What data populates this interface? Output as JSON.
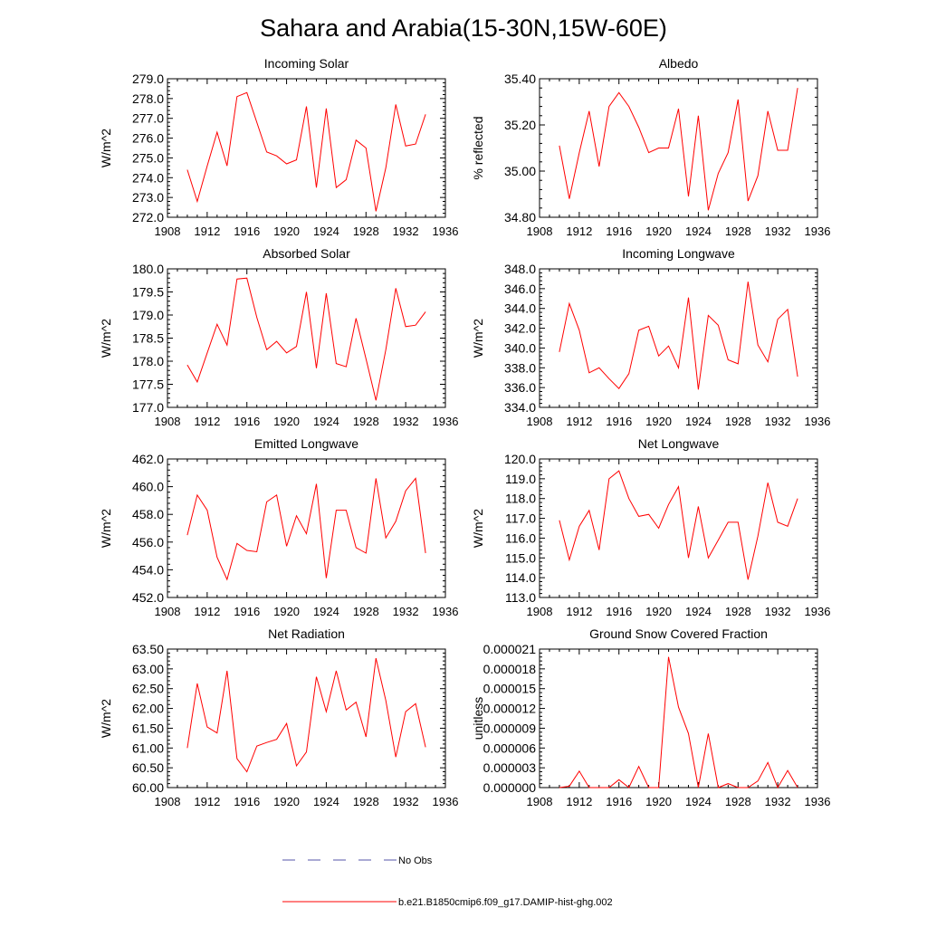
{
  "title": "Sahara and Arabia(15-30N,15W-60E)",
  "colors": {
    "series": "#ff0000",
    "no_obs": "#5555aa",
    "axis": "#000000"
  },
  "legend": {
    "position": "bottom-center",
    "entries": [
      {
        "label": "No Obs",
        "color": "#5555aa",
        "style": "dashed"
      },
      {
        "label": "b.e21.B1850cmip6.f09_g17.DAMIP-hist-ghg.002",
        "color": "#ff0000",
        "style": "solid"
      }
    ]
  },
  "chart_data": [
    {
      "type": "line",
      "title": "Incoming Solar",
      "ylabel": "W/m^2",
      "xlim": [
        1908,
        1936
      ],
      "ylim": [
        272.0,
        279.0
      ],
      "xticks": [
        "1908",
        "1912",
        "1916",
        "1920",
        "1924",
        "1928",
        "1932",
        "1936"
      ],
      "yticks": [
        "272.0",
        "273.0",
        "274.0",
        "275.0",
        "276.0",
        "277.0",
        "278.0",
        "279.0"
      ],
      "x": [
        1910,
        1911,
        1912,
        1913,
        1914,
        1915,
        1916,
        1917,
        1918,
        1919,
        1920,
        1921,
        1922,
        1923,
        1924,
        1925,
        1926,
        1927,
        1928,
        1929,
        1930,
        1931,
        1932,
        1933,
        1934
      ],
      "series": [
        {
          "values": [
            274.4,
            272.8,
            274.6,
            276.3,
            274.6,
            278.1,
            278.3,
            276.8,
            275.3,
            275.1,
            274.7,
            274.9,
            277.6,
            273.5,
            277.5,
            273.5,
            273.9,
            275.9,
            275.5,
            272.3,
            274.5,
            277.7,
            275.6,
            275.7,
            277.2
          ]
        }
      ]
    },
    {
      "type": "line",
      "title": "Albedo",
      "ylabel": "% reflected",
      "xlim": [
        1908,
        1936
      ],
      "ylim": [
        34.8,
        35.4
      ],
      "xticks": [
        "1908",
        "1912",
        "1916",
        "1920",
        "1924",
        "1928",
        "1932",
        "1936"
      ],
      "yticks": [
        "34.80",
        "35.00",
        "35.20",
        "35.40"
      ],
      "x": [
        1910,
        1911,
        1912,
        1913,
        1914,
        1915,
        1916,
        1917,
        1918,
        1919,
        1920,
        1921,
        1922,
        1923,
        1924,
        1925,
        1926,
        1927,
        1928,
        1929,
        1930,
        1931,
        1932,
        1933,
        1934
      ],
      "series": [
        {
          "values": [
            35.11,
            34.88,
            35.08,
            35.26,
            35.02,
            35.28,
            35.34,
            35.28,
            35.19,
            35.08,
            35.1,
            35.1,
            35.27,
            34.89,
            35.24,
            34.83,
            34.99,
            35.08,
            35.31,
            34.87,
            34.98,
            35.26,
            35.09,
            35.09,
            35.36
          ]
        }
      ]
    },
    {
      "type": "line",
      "title": "Absorbed Solar",
      "ylabel": "W/m^2",
      "xlim": [
        1908,
        1936
      ],
      "ylim": [
        177.0,
        180.0
      ],
      "xticks": [
        "1908",
        "1912",
        "1916",
        "1920",
        "1924",
        "1928",
        "1932",
        "1936"
      ],
      "yticks": [
        "177.0",
        "177.5",
        "178.0",
        "178.5",
        "179.0",
        "179.5",
        "180.0"
      ],
      "x": [
        1910,
        1911,
        1912,
        1913,
        1914,
        1915,
        1916,
        1917,
        1918,
        1919,
        1920,
        1921,
        1922,
        1923,
        1924,
        1925,
        1926,
        1927,
        1928,
        1929,
        1930,
        1931,
        1932,
        1933,
        1934
      ],
      "series": [
        {
          "values": [
            177.92,
            177.55,
            178.18,
            178.8,
            178.35,
            179.78,
            179.8,
            178.95,
            178.25,
            178.43,
            178.18,
            178.32,
            179.5,
            177.85,
            179.47,
            177.95,
            177.88,
            178.93,
            178.05,
            177.15,
            178.25,
            179.58,
            178.75,
            178.78,
            179.07
          ]
        }
      ]
    },
    {
      "type": "line",
      "title": "Incoming Longwave",
      "ylabel": "W/m^2",
      "xlim": [
        1908,
        1936
      ],
      "ylim": [
        334.0,
        348.0
      ],
      "xticks": [
        "1908",
        "1912",
        "1916",
        "1920",
        "1924",
        "1928",
        "1932",
        "1936"
      ],
      "yticks": [
        "334.0",
        "336.0",
        "338.0",
        "340.0",
        "342.0",
        "344.0",
        "346.0",
        "348.0"
      ],
      "x": [
        1910,
        1911,
        1912,
        1913,
        1914,
        1915,
        1916,
        1917,
        1918,
        1919,
        1920,
        1921,
        1922,
        1923,
        1924,
        1925,
        1926,
        1927,
        1928,
        1929,
        1930,
        1931,
        1932,
        1933,
        1934
      ],
      "series": [
        {
          "values": [
            339.6,
            344.5,
            341.8,
            337.5,
            338.0,
            336.9,
            335.9,
            337.4,
            341.8,
            342.2,
            339.2,
            340.2,
            338.0,
            345.1,
            335.8,
            343.3,
            342.3,
            338.8,
            338.4,
            346.7,
            340.3,
            338.6,
            342.9,
            343.9,
            337.1
          ]
        }
      ]
    },
    {
      "type": "line",
      "title": "Emitted Longwave",
      "ylabel": "W/m^2",
      "xlim": [
        1908,
        1936
      ],
      "ylim": [
        452.0,
        462.0
      ],
      "xticks": [
        "1908",
        "1912",
        "1916",
        "1920",
        "1924",
        "1928",
        "1932",
        "1936"
      ],
      "yticks": [
        "452.0",
        "454.0",
        "456.0",
        "458.0",
        "460.0",
        "462.0"
      ],
      "x": [
        1910,
        1911,
        1912,
        1913,
        1914,
        1915,
        1916,
        1917,
        1918,
        1919,
        1920,
        1921,
        1922,
        1923,
        1924,
        1925,
        1926,
        1927,
        1928,
        1929,
        1930,
        1931,
        1932,
        1933,
        1934
      ],
      "series": [
        {
          "values": [
            456.5,
            459.4,
            458.3,
            454.9,
            453.3,
            455.9,
            455.4,
            455.3,
            458.9,
            459.4,
            455.7,
            457.9,
            456.6,
            460.2,
            453.4,
            458.3,
            458.3,
            455.6,
            455.2,
            460.6,
            456.3,
            457.5,
            459.7,
            460.6,
            455.2
          ]
        }
      ]
    },
    {
      "type": "line",
      "title": "Net Longwave",
      "ylabel": "W/m^2",
      "xlim": [
        1908,
        1936
      ],
      "ylim": [
        113.0,
        120.0
      ],
      "xticks": [
        "1908",
        "1912",
        "1916",
        "1920",
        "1924",
        "1928",
        "1932",
        "1936"
      ],
      "yticks": [
        "113.0",
        "114.0",
        "115.0",
        "116.0",
        "117.0",
        "118.0",
        "119.0",
        "120.0"
      ],
      "x": [
        1910,
        1911,
        1912,
        1913,
        1914,
        1915,
        1916,
        1917,
        1918,
        1919,
        1920,
        1921,
        1922,
        1923,
        1924,
        1925,
        1926,
        1927,
        1928,
        1929,
        1930,
        1931,
        1932,
        1933,
        1934
      ],
      "series": [
        {
          "values": [
            116.9,
            114.9,
            116.6,
            117.4,
            115.4,
            119.0,
            119.4,
            118.0,
            117.1,
            117.2,
            116.5,
            117.7,
            118.6,
            115.0,
            117.6,
            115.0,
            115.9,
            116.8,
            116.8,
            113.9,
            116.1,
            118.8,
            116.8,
            116.6,
            118.0
          ]
        }
      ]
    },
    {
      "type": "line",
      "title": "Net Radiation",
      "ylabel": "W/m^2",
      "xlim": [
        1908,
        1936
      ],
      "ylim": [
        60.0,
        63.5
      ],
      "xticks": [
        "1908",
        "1912",
        "1916",
        "1920",
        "1924",
        "1928",
        "1932",
        "1936"
      ],
      "yticks": [
        "60.00",
        "60.50",
        "61.00",
        "61.50",
        "62.00",
        "62.50",
        "63.00",
        "63.50"
      ],
      "x": [
        1910,
        1911,
        1912,
        1913,
        1914,
        1915,
        1916,
        1917,
        1918,
        1919,
        1920,
        1921,
        1922,
        1923,
        1924,
        1925,
        1926,
        1927,
        1928,
        1929,
        1930,
        1931,
        1932,
        1933,
        1934
      ],
      "series": [
        {
          "values": [
            61.0,
            62.63,
            61.53,
            61.38,
            62.95,
            60.73,
            60.4,
            61.05,
            61.14,
            61.22,
            61.62,
            60.55,
            60.9,
            62.8,
            61.92,
            62.95,
            61.96,
            62.16,
            61.28,
            63.27,
            62.2,
            60.77,
            61.92,
            62.12,
            61.02
          ]
        }
      ]
    },
    {
      "type": "line",
      "title": "Ground Snow Covered Fraction",
      "ylabel": "unitless",
      "xlim": [
        1908,
        1936
      ],
      "ylim": [
        0.0,
        2.1e-05
      ],
      "xticks": [
        "1908",
        "1912",
        "1916",
        "1920",
        "1924",
        "1928",
        "1932",
        "1936"
      ],
      "yticks": [
        "0.000000",
        "0.000003",
        "0.000006",
        "0.000009",
        "0.000012",
        "0.000015",
        "0.000018",
        "0.000021"
      ],
      "x": [
        1910,
        1911,
        1912,
        1913,
        1914,
        1915,
        1916,
        1917,
        1918,
        1919,
        1920,
        1921,
        1922,
        1923,
        1924,
        1925,
        1926,
        1927,
        1928,
        1929,
        1930,
        1931,
        1932,
        1933,
        1934
      ],
      "series": [
        {
          "values": [
            0.0,
            2e-07,
            2.5e-06,
            0.0,
            0.0,
            0.0,
            1.2e-06,
            0.0,
            3.2e-06,
            0.0,
            0.0,
            1.98e-05,
            1.22e-05,
            8.2e-06,
            0.0,
            8.2e-06,
            0.0,
            6e-07,
            0.0,
            0.0,
            1e-06,
            3.8e-06,
            0.0,
            2.6e-06,
            0.0
          ]
        }
      ]
    }
  ]
}
